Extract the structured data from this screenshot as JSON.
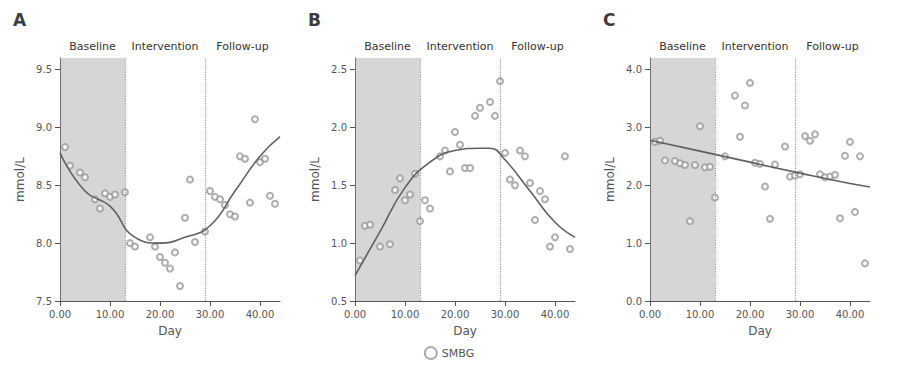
{
  "chart_data": [
    {
      "type": "scatter",
      "title": "A",
      "xlabel": "Day",
      "ylabel": "mmol/L",
      "xlim": [
        0,
        44
      ],
      "xticks": [
        {
          "value": 0,
          "label": "0.00"
        },
        {
          "value": 10,
          "label": "10.00"
        },
        {
          "value": 20,
          "label": "20.00"
        },
        {
          "value": 30,
          "label": "30.00"
        },
        {
          "value": 40,
          "label": "40.00"
        }
      ],
      "ylim": [
        7.5,
        9.6
      ],
      "yticks": [
        7.5,
        {
          "value": 8.0,
          "label": "8.0"
        },
        8.5,
        {
          "value": 9.0,
          "label": "9.0"
        },
        9.5
      ],
      "grid": false,
      "legend": "bottom",
      "phase_lines": [
        13,
        29
      ],
      "phases": [
        "Baseline",
        "Intervention",
        "Follow-up"
      ],
      "series": [
        {
          "name": "SMBG",
          "type": "scatter",
          "marker": "circle",
          "color": "#999999",
          "x": [
            1,
            2,
            4,
            5,
            7,
            8,
            9,
            10,
            11,
            13,
            14,
            15,
            18,
            19,
            20,
            21,
            22,
            23,
            24,
            25,
            26,
            27,
            29,
            30,
            31,
            32,
            33,
            34,
            35,
            36,
            37,
            38,
            39,
            40,
            41,
            42,
            43
          ],
          "values": [
            8.83,
            8.67,
            8.61,
            8.57,
            8.38,
            8.3,
            8.43,
            8.4,
            8.42,
            8.44,
            8.0,
            7.97,
            8.05,
            7.97,
            7.88,
            7.83,
            7.78,
            7.92,
            7.63,
            8.22,
            8.55,
            8.01,
            8.1,
            8.45,
            8.4,
            8.38,
            8.33,
            8.25,
            8.23,
            8.75,
            8.73,
            8.35,
            9.07,
            8.7,
            8.73,
            8.41,
            8.34
          ]
        },
        {
          "type": "line",
          "line_style": "solid",
          "color": "#606060",
          "x": [
            0,
            5,
            10,
            15,
            20,
            25,
            30,
            35,
            40,
            44
          ],
          "values": [
            8.78,
            8.45,
            8.32,
            8.05,
            8.0,
            8.05,
            8.15,
            8.45,
            8.75,
            8.92
          ]
        }
      ]
    },
    {
      "type": "scatter",
      "title": "B",
      "xlabel": "Day",
      "ylabel": "mmol/L",
      "xlim": [
        0,
        44
      ],
      "xticks": [
        {
          "value": 0,
          "label": "0.00"
        },
        {
          "value": 10,
          "label": "10.00"
        },
        {
          "value": 20,
          "label": "20.00"
        },
        {
          "value": 30,
          "label": "30.00"
        },
        {
          "value": 40,
          "label": "40.00"
        }
      ],
      "ylim": [
        0.5,
        2.6
      ],
      "yticks": [
        0.5,
        {
          "value": 1.0,
          "label": "1.0"
        },
        1.5,
        {
          "value": 2.0,
          "label": "2.0"
        },
        2.5
      ],
      "grid": false,
      "phase_lines": [
        13,
        29
      ],
      "phases": [
        "Baseline",
        "Intervention",
        "Follow-up"
      ],
      "series": [
        {
          "name": "SMBG",
          "type": "scatter",
          "marker": "circle",
          "color": "#999999",
          "x": [
            1,
            2,
            3,
            5,
            7,
            8,
            9,
            10,
            11,
            12,
            13,
            14,
            15,
            17,
            18,
            19,
            20,
            21,
            22,
            23,
            24,
            25,
            27,
            28,
            29,
            30,
            31,
            32,
            33,
            34,
            35,
            36,
            37,
            38,
            39,
            40,
            42,
            43
          ],
          "values": [
            0.85,
            1.15,
            1.16,
            0.97,
            0.99,
            1.46,
            1.56,
            1.37,
            1.42,
            1.6,
            1.19,
            1.37,
            1.3,
            1.75,
            1.8,
            1.62,
            1.96,
            1.85,
            1.65,
            1.65,
            2.1,
            2.17,
            2.22,
            2.1,
            2.4,
            1.78,
            1.55,
            1.5,
            1.8,
            1.75,
            1.52,
            1.2,
            1.45,
            1.38,
            0.97,
            1.05,
            1.75,
            0.95
          ]
        },
        {
          "type": "line",
          "line_style": "solid",
          "color": "#606060",
          "x": [
            0,
            5,
            10,
            15,
            20,
            25,
            27,
            30,
            35,
            40,
            44
          ],
          "values": [
            0.72,
            1.1,
            1.48,
            1.7,
            1.8,
            1.82,
            1.82,
            1.72,
            1.45,
            1.18,
            1.05
          ]
        }
      ]
    },
    {
      "type": "scatter",
      "title": "C",
      "xlabel": "Day",
      "ylabel": "mmol/L",
      "xlim": [
        0,
        44
      ],
      "xticks": [
        {
          "value": 0,
          "label": "0.00"
        },
        {
          "value": 10,
          "label": "10.00"
        },
        {
          "value": 20,
          "label": "20.00"
        },
        {
          "value": 30,
          "label": "30.00"
        },
        {
          "value": 40,
          "label": "40.00"
        }
      ],
      "ylim": [
        0.0,
        4.2
      ],
      "yticks": [
        {
          "value": 0.0,
          "label": "0.0"
        },
        {
          "value": 1.0,
          "label": "1.0"
        },
        {
          "value": 2.0,
          "label": "2.0"
        },
        {
          "value": 3.0,
          "label": "3.0"
        },
        {
          "value": 4.0,
          "label": "4.0"
        }
      ],
      "grid": false,
      "phase_lines": [
        13,
        29
      ],
      "phases": [
        "Baseline",
        "Intervention",
        "Follow-up"
      ],
      "series": [
        {
          "name": "SMBG",
          "type": "scatter",
          "marker": "circle",
          "color": "#999999",
          "x": [
            1,
            2,
            3,
            5,
            6,
            7,
            8,
            9,
            10,
            11,
            12,
            13,
            15,
            17,
            18,
            19,
            20,
            21,
            22,
            23,
            24,
            25,
            27,
            28,
            29,
            30,
            31,
            32,
            33,
            34,
            35,
            36,
            37,
            38,
            39,
            40,
            41,
            42,
            43
          ],
          "values": [
            2.75,
            2.77,
            2.43,
            2.42,
            2.38,
            2.35,
            1.38,
            2.35,
            3.02,
            2.31,
            2.32,
            1.79,
            2.5,
            3.55,
            2.84,
            3.38,
            3.77,
            2.39,
            2.37,
            1.98,
            1.42,
            2.36,
            2.67,
            2.15,
            2.17,
            2.19,
            2.85,
            2.77,
            2.88,
            2.19,
            2.14,
            2.15,
            2.18,
            1.43,
            2.51,
            2.75,
            1.54,
            2.5,
            0.65
          ]
        },
        {
          "type": "line",
          "line_style": "solid",
          "color": "#606060",
          "x": [
            0,
            10,
            20,
            30,
            40,
            44
          ],
          "values": [
            2.78,
            2.59,
            2.4,
            2.21,
            2.03,
            1.97
          ]
        }
      ]
    }
  ]
}
